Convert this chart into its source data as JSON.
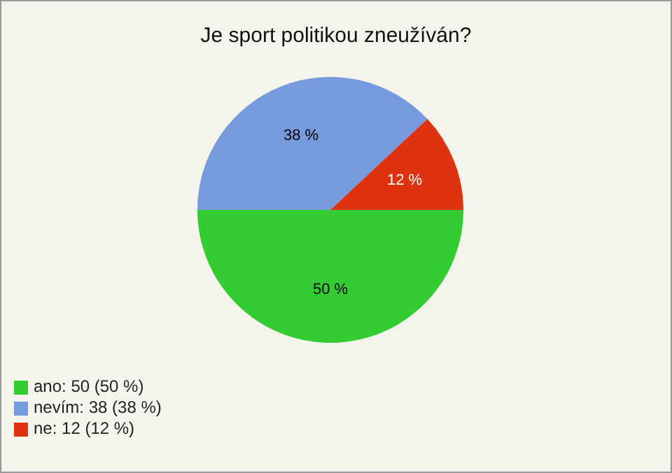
{
  "chart_data": {
    "type": "pie",
    "title": "Je sport politikou zneužíván?",
    "categories": [
      "ano: 50 (50 %)",
      "nevím: 38 (38 %)",
      "ne: 12 (12 %)"
    ],
    "values": [
      50,
      38,
      12
    ],
    "colors": [
      "#33cc33",
      "#7799dd",
      "#dd3311"
    ],
    "value_labels": [
      "50 %",
      "38 %",
      "12 %"
    ],
    "legend": "bottom left"
  }
}
